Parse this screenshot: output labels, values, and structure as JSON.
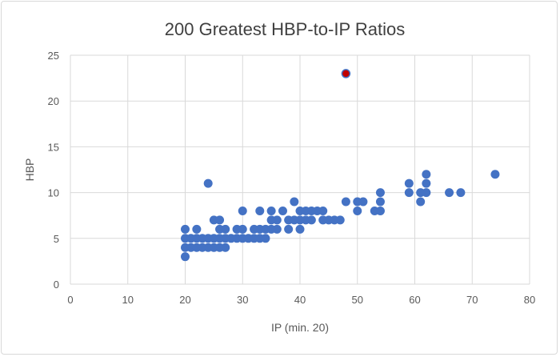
{
  "chart_data": {
    "type": "scatter",
    "title": "200 Greatest HBP-to-IP Ratios",
    "xlabel": "IP (min. 20)",
    "ylabel": "HBP",
    "xlim": [
      0,
      80
    ],
    "ylim": [
      0,
      25
    ],
    "xticks": [
      0,
      10,
      20,
      30,
      40,
      50,
      60,
      70,
      80
    ],
    "yticks": [
      0,
      5,
      10,
      15,
      20,
      25
    ],
    "grid": true,
    "legend": "none",
    "colors": {
      "points": "#4472C4",
      "highlight": "#C00000",
      "grid": "#d9d9d9"
    },
    "points": [
      [
        20,
        3
      ],
      [
        20,
        4
      ],
      [
        21,
        4
      ],
      [
        22,
        4
      ],
      [
        23,
        4
      ],
      [
        24,
        4
      ],
      [
        25,
        4
      ],
      [
        26,
        4
      ],
      [
        27,
        4
      ],
      [
        20,
        5
      ],
      [
        21,
        5
      ],
      [
        22,
        5
      ],
      [
        23,
        5
      ],
      [
        24,
        5
      ],
      [
        25,
        5
      ],
      [
        26,
        5
      ],
      [
        27,
        5
      ],
      [
        28,
        5
      ],
      [
        29,
        5
      ],
      [
        30,
        5
      ],
      [
        31,
        5
      ],
      [
        32,
        5
      ],
      [
        33,
        5
      ],
      [
        34,
        5
      ],
      [
        20,
        6
      ],
      [
        22,
        6
      ],
      [
        26,
        6
      ],
      [
        27,
        6
      ],
      [
        29,
        6
      ],
      [
        30,
        6
      ],
      [
        32,
        6
      ],
      [
        33,
        6
      ],
      [
        34,
        6
      ],
      [
        35,
        6
      ],
      [
        36,
        6
      ],
      [
        38,
        6
      ],
      [
        40,
        6
      ],
      [
        25,
        7
      ],
      [
        26,
        7
      ],
      [
        35,
        7
      ],
      [
        36,
        7
      ],
      [
        38,
        7
      ],
      [
        39,
        7
      ],
      [
        40,
        7
      ],
      [
        41,
        7
      ],
      [
        42,
        7
      ],
      [
        44,
        7
      ],
      [
        45,
        7
      ],
      [
        46,
        7
      ],
      [
        47,
        7
      ],
      [
        30,
        8
      ],
      [
        33,
        8
      ],
      [
        35,
        8
      ],
      [
        37,
        8
      ],
      [
        40,
        8
      ],
      [
        41,
        8
      ],
      [
        42,
        8
      ],
      [
        43,
        8
      ],
      [
        44,
        8
      ],
      [
        50,
        8
      ],
      [
        53,
        8
      ],
      [
        54,
        8
      ],
      [
        39,
        9
      ],
      [
        48,
        9
      ],
      [
        50,
        9
      ],
      [
        51,
        9
      ],
      [
        54,
        9
      ],
      [
        61,
        9
      ],
      [
        54,
        10
      ],
      [
        59,
        10
      ],
      [
        61,
        10
      ],
      [
        62,
        10
      ],
      [
        66,
        10
      ],
      [
        68,
        10
      ],
      [
        24,
        11
      ],
      [
        59,
        11
      ],
      [
        62,
        11
      ],
      [
        62,
        12
      ],
      [
        74,
        12
      ]
    ],
    "highlight_points": [
      [
        48,
        23
      ]
    ]
  }
}
